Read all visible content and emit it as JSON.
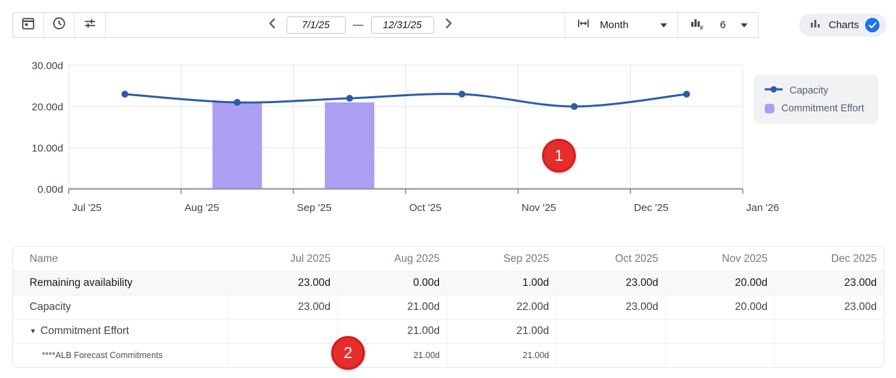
{
  "toolbar": {
    "icons": [
      "calendar-icon",
      "clock-icon",
      "sliders-icon",
      "column-width-icon",
      "bar-count-icon"
    ],
    "date_start": "7/1/25",
    "date_end": "12/31/25",
    "range_separator": "—",
    "zoom_unit_label": "Month",
    "bar_count_label": "6",
    "charts_toggle": {
      "label": "Charts",
      "checked": true
    }
  },
  "chart_data": {
    "type": "line+bar",
    "categories": [
      "Jul '25",
      "Aug '25",
      "Sep '25",
      "Oct '25",
      "Nov '25",
      "Dec '25"
    ],
    "x_axis_labels": [
      "Jul '25",
      "Aug '25",
      "Sep '25",
      "Oct '25",
      "Nov '25",
      "Dec '25",
      "Jan '26"
    ],
    "y_axis_labels": [
      "30.00d",
      "20.00d",
      "10.00d",
      "0.00d"
    ],
    "ylim": [
      0,
      30
    ],
    "grid": true,
    "legend_position": "right",
    "series": [
      {
        "name": "Capacity",
        "type": "line",
        "color": "#2b5bab",
        "values": [
          23,
          21,
          22,
          23,
          20,
          23
        ]
      },
      {
        "name": "Commitment Effort",
        "type": "bar",
        "color": "#ab9ff2",
        "values": [
          0,
          21,
          21,
          0,
          0,
          0
        ]
      }
    ]
  },
  "annotations": [
    {
      "label": "1"
    },
    {
      "label": "2"
    }
  ],
  "table": {
    "columns": [
      "Name",
      "Jul 2025",
      "Aug 2025",
      "Sep 2025",
      "Oct 2025",
      "Nov 2025",
      "Dec 2025"
    ],
    "rows": [
      {
        "name": "Remaining availability",
        "values": [
          "23.00d",
          "0.00d",
          "1.00d",
          "23.00d",
          "20.00d",
          "23.00d"
        ],
        "highlight": true,
        "vborders": false,
        "expandable": false,
        "child": false
      },
      {
        "name": "Capacity",
        "values": [
          "23.00d",
          "21.00d",
          "22.00d",
          "23.00d",
          "20.00d",
          "23.00d"
        ],
        "highlight": false,
        "vborders": true,
        "expandable": false,
        "child": false
      },
      {
        "name": "Commitment Effort",
        "values": [
          "",
          "21.00d",
          "21.00d",
          "",
          "",
          ""
        ],
        "highlight": false,
        "vborders": true,
        "expandable": true,
        "child": false
      },
      {
        "name": "****ALB Forecast Commitments",
        "values": [
          "",
          "21.00d",
          "21.00d",
          "",
          "",
          ""
        ],
        "highlight": false,
        "vborders": true,
        "expandable": false,
        "child": true
      }
    ]
  },
  "colors": {
    "line_blue": "#2b5bab",
    "bar_purple": "#ab9ff2",
    "badge_red": "#e62d2d",
    "check_blue": "#1a73e8",
    "grid_line": "#e2e5e8",
    "axis_line": "#7f868c",
    "axis_text": "#3c434b"
  }
}
